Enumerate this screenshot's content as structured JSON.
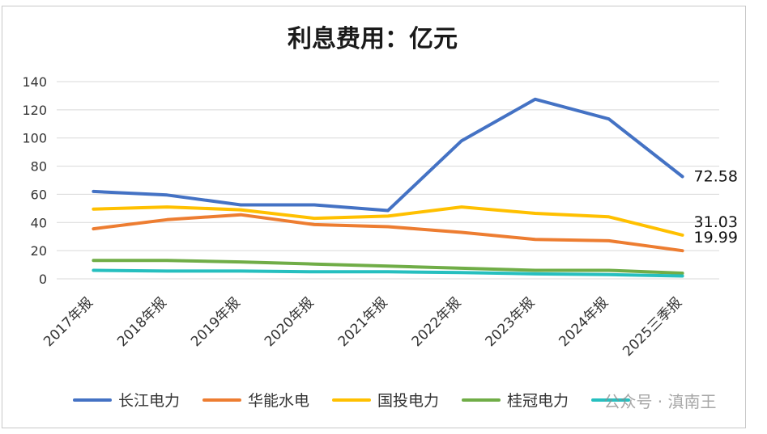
{
  "chart_data": {
    "type": "line",
    "title": "利息费用：亿元",
    "categories": [
      "2017年报",
      "2018年报",
      "2019年报",
      "2020年报",
      "2021年报",
      "2022年报",
      "2023年报",
      "2024年报",
      "2025三季报"
    ],
    "ylim": [
      0,
      140
    ],
    "yticks": [
      "0",
      "20",
      "40",
      "60",
      "80",
      "100",
      "120",
      "140"
    ],
    "grid": true,
    "legend_placement": "bottom",
    "series": [
      {
        "name": "长江电力",
        "color": "#4472C4",
        "values": [
          62,
          59.5,
          52.5,
          52.5,
          48.5,
          98,
          127.5,
          113.5,
          72.58
        ]
      },
      {
        "name": "华能水电",
        "color": "#ED7D31",
        "values": [
          35.5,
          42,
          45.5,
          38.5,
          37,
          33,
          28,
          27,
          19.99
        ]
      },
      {
        "name": "国投电力",
        "color": "#FFC000",
        "values": [
          49.5,
          51,
          49,
          43,
          44.5,
          51,
          46.5,
          44,
          31.03
        ]
      },
      {
        "name": "桂冠电力",
        "color": "#70AD47",
        "values": [
          13,
          13,
          12,
          10.5,
          9,
          7.5,
          6,
          6,
          4
        ]
      },
      {
        "name": "",
        "color": "#26BFBF",
        "values": [
          6,
          5.5,
          5.5,
          5,
          5,
          4.5,
          3.5,
          3,
          2
        ]
      }
    ],
    "end_labels": [
      {
        "series": 0,
        "text": "72.58"
      },
      {
        "series": 2,
        "text": "31.03"
      },
      {
        "series": 1,
        "text": "19.99"
      }
    ],
    "watermark": "公众号 · 滇南王"
  }
}
